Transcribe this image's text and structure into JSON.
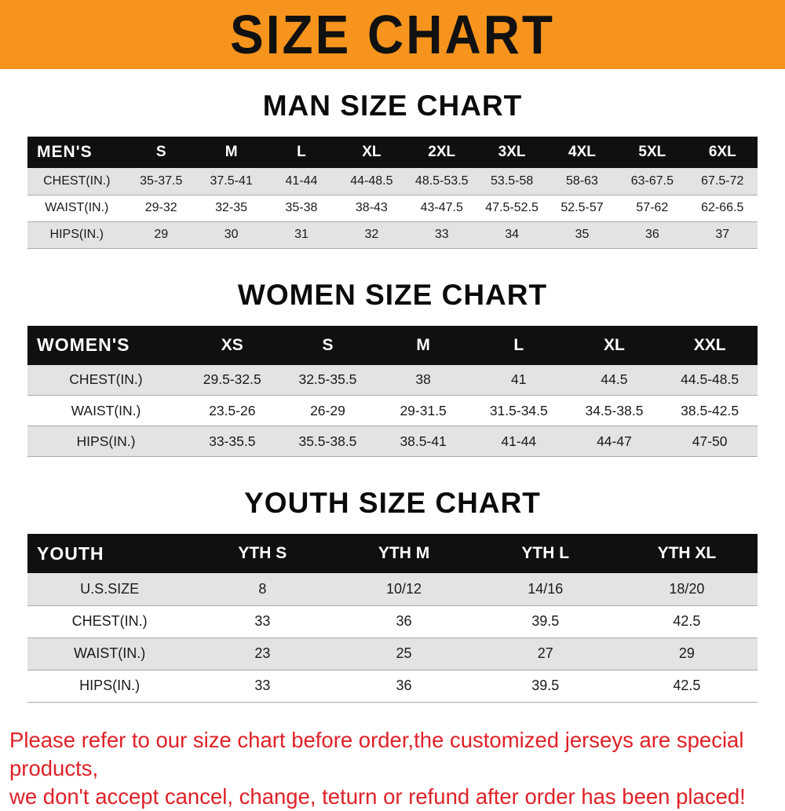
{
  "banner": {
    "title": "SIZE CHART",
    "bg_color": "#F7941D",
    "text_color": "#111111"
  },
  "sections": [
    {
      "heading": "MAN SIZE CHART",
      "table": {
        "corner_label": "MEN'S",
        "columns": [
          "S",
          "M",
          "L",
          "XL",
          "2XL",
          "3XL",
          "4XL",
          "5XL",
          "6XL"
        ],
        "rows": [
          {
            "label": "CHEST(IN.)",
            "values": [
              "35-37.5",
              "37.5-41",
              "41-44",
              "44-48.5",
              "48.5-53.5",
              "53.5-58",
              "58-63",
              "63-67.5",
              "67.5-72"
            ]
          },
          {
            "label": "WAIST(IN.)",
            "values": [
              "29-32",
              "32-35",
              "35-38",
              "38-43",
              "43-47.5",
              "47.5-52.5",
              "52.5-57",
              "57-62",
              "62-66.5"
            ]
          },
          {
            "label": "HIPS(IN.)",
            "values": [
              "29",
              "30",
              "31",
              "32",
              "33",
              "34",
              "35",
              "36",
              "37"
            ]
          }
        ]
      }
    },
    {
      "heading": "WOMEN SIZE CHART",
      "table": {
        "corner_label": "WOMEN'S",
        "columns": [
          "XS",
          "S",
          "M",
          "L",
          "XL",
          "XXL"
        ],
        "rows": [
          {
            "label": "CHEST(IN.)",
            "values": [
              "29.5-32.5",
              "32.5-35.5",
              "38",
              "41",
              "44.5",
              "44.5-48.5"
            ]
          },
          {
            "label": "WAIST(IN.)",
            "values": [
              "23.5-26",
              "26-29",
              "29-31.5",
              "31.5-34.5",
              "34.5-38.5",
              "38.5-42.5"
            ]
          },
          {
            "label": "HIPS(IN.)",
            "values": [
              "33-35.5",
              "35.5-38.5",
              "38.5-41",
              "41-44",
              "44-47",
              "47-50"
            ]
          }
        ]
      }
    },
    {
      "heading": "YOUTH SIZE CHART",
      "table": {
        "corner_label": "YOUTH",
        "columns": [
          "YTH S",
          "YTH M",
          "YTH L",
          "YTH XL"
        ],
        "rows": [
          {
            "label": "U.S.SIZE",
            "values": [
              "8",
              "10/12",
              "14/16",
              "18/20"
            ]
          },
          {
            "label": "CHEST(IN.)",
            "values": [
              "33",
              "36",
              "39.5",
              "42.5"
            ]
          },
          {
            "label": "WAIST(IN.)",
            "values": [
              "23",
              "25",
              "27",
              "29"
            ]
          },
          {
            "label": "HIPS(IN.)",
            "values": [
              "33",
              "36",
              "39.5",
              "42.5"
            ]
          }
        ]
      }
    }
  ],
  "disclaimer": {
    "line1": "Please refer to our size chart before order,the customized jerseys are special products,",
    "line2": "we don't accept cancel, change, teturn or refund after order has been placed!",
    "color": "#df2127"
  }
}
